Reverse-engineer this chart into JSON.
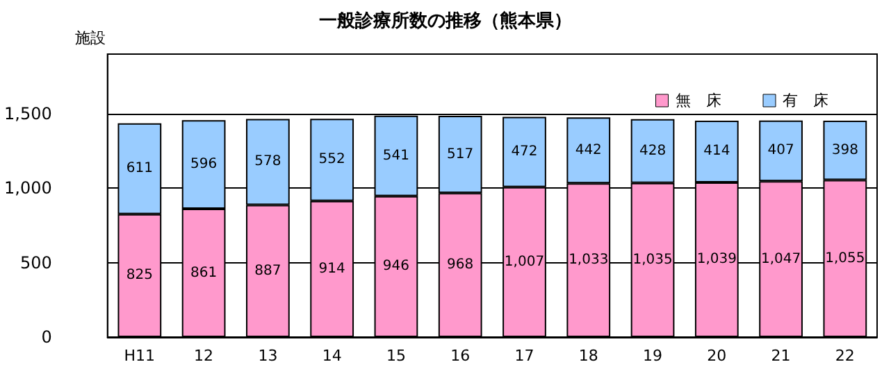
{
  "chart_data": {
    "type": "bar",
    "title": "一般診療所数の推移（熊本県）",
    "ylabel": "施設",
    "categories": [
      "H11",
      "12",
      "13",
      "14",
      "15",
      "16",
      "17",
      "18",
      "19",
      "20",
      "21",
      "22"
    ],
    "stacked": true,
    "grid": "y",
    "legend": "top right",
    "ylim": [
      0,
      1900
    ],
    "yticks": [
      0,
      {
        "value": 500,
        "label": "500"
      },
      {
        "value": 1000,
        "label": "1,000"
      },
      {
        "value": 1500,
        "label": "1,500"
      }
    ],
    "series": [
      {
        "name": "無　床",
        "color": "#ff99cc",
        "values": [
          825,
          861,
          887,
          914,
          946,
          968,
          1007,
          1033,
          1035,
          1039,
          1047,
          1055
        ],
        "value_labels": [
          "825",
          "861",
          "887",
          "914",
          "946",
          "968",
          "1,007",
          "1,033",
          "1,035",
          "1,039",
          "1,047",
          "1,055"
        ]
      },
      {
        "name": "有　床",
        "color": "#99ccff",
        "values": [
          611,
          596,
          578,
          552,
          541,
          517,
          472,
          442,
          428,
          414,
          407,
          398
        ],
        "value_labels": [
          "611",
          "596",
          "578",
          "552",
          "541",
          "517",
          "472",
          "442",
          "428",
          "414",
          "407",
          "398"
        ]
      }
    ]
  }
}
